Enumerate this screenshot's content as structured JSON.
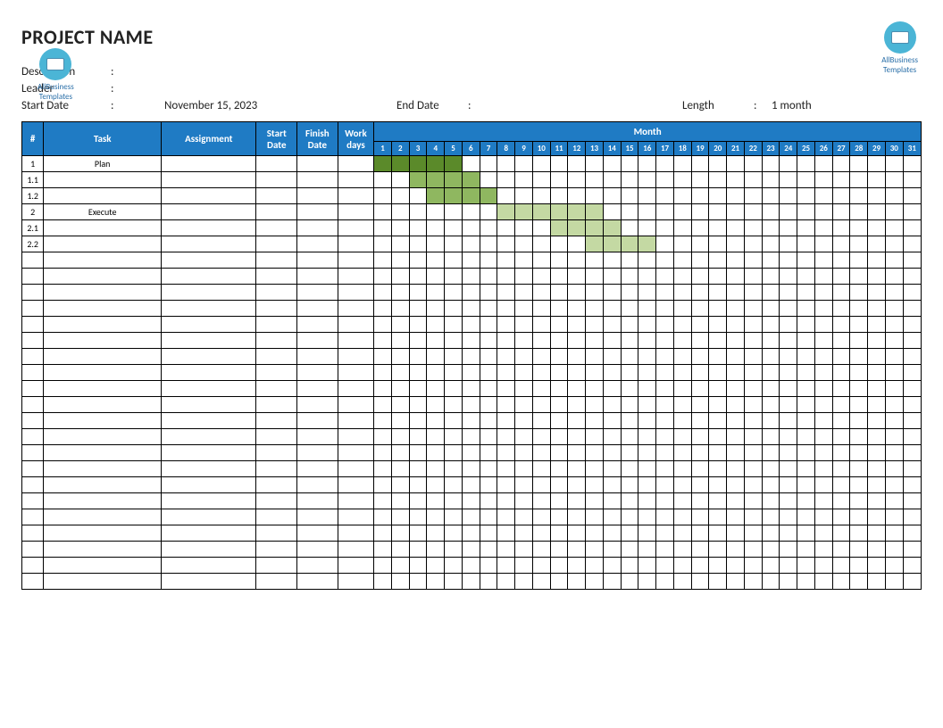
{
  "title": "PROJECT NAME",
  "logo": {
    "line1": "AllBusiness",
    "line2": "Templates"
  },
  "meta": {
    "description_label": "Description",
    "description_value": "",
    "leader_label": "Leader",
    "leader_value": "",
    "start_label": "Start Date",
    "start_value": "November 15, 2023",
    "end_label": "End Date",
    "end_value": "",
    "length_label": "Length",
    "length_value": "1 month",
    "colon": ":"
  },
  "headers": {
    "num": "#",
    "task": "Task",
    "assignment": "Assignment",
    "start_date": "Start Date",
    "finish_date": "Finish Date",
    "work_days": "Work days",
    "month": "Month"
  },
  "days": [
    "1",
    "2",
    "3",
    "4",
    "5",
    "6",
    "7",
    "8",
    "9",
    "10",
    "11",
    "12",
    "13",
    "14",
    "15",
    "16",
    "17",
    "18",
    "19",
    "20",
    "21",
    "22",
    "23",
    "24",
    "25",
    "26",
    "27",
    "28",
    "29",
    "30",
    "31"
  ],
  "rows": [
    {
      "num": "1",
      "task": "Plan",
      "bars": [
        {
          "from": 1,
          "to": 5,
          "cls": "bar-dark"
        }
      ]
    },
    {
      "num": "1.1",
      "task": "",
      "bars": [
        {
          "from": 3,
          "to": 6,
          "cls": "bar-mid"
        }
      ]
    },
    {
      "num": "1.2",
      "task": "",
      "bars": [
        {
          "from": 4,
          "to": 7,
          "cls": "bar-mid"
        }
      ]
    },
    {
      "num": "2",
      "task": "Execute",
      "bars": [
        {
          "from": 8,
          "to": 13,
          "cls": "bar-light"
        }
      ]
    },
    {
      "num": "2.1",
      "task": "",
      "bars": [
        {
          "from": 11,
          "to": 14,
          "cls": "bar-light"
        }
      ]
    },
    {
      "num": "2.2",
      "task": "",
      "bars": [
        {
          "from": 13,
          "to": 16,
          "cls": "bar-light"
        }
      ]
    },
    {
      "num": "",
      "task": "",
      "bars": []
    },
    {
      "num": "",
      "task": "",
      "bars": []
    },
    {
      "num": "",
      "task": "",
      "bars": []
    },
    {
      "num": "",
      "task": "",
      "bars": []
    },
    {
      "num": "",
      "task": "",
      "bars": []
    },
    {
      "num": "",
      "task": "",
      "bars": []
    },
    {
      "num": "",
      "task": "",
      "bars": []
    },
    {
      "num": "",
      "task": "",
      "bars": []
    },
    {
      "num": "",
      "task": "",
      "bars": []
    },
    {
      "num": "",
      "task": "",
      "bars": []
    },
    {
      "num": "",
      "task": "",
      "bars": []
    },
    {
      "num": "",
      "task": "",
      "bars": []
    },
    {
      "num": "",
      "task": "",
      "bars": []
    },
    {
      "num": "",
      "task": "",
      "bars": []
    },
    {
      "num": "",
      "task": "",
      "bars": []
    },
    {
      "num": "",
      "task": "",
      "bars": []
    },
    {
      "num": "",
      "task": "",
      "bars": []
    },
    {
      "num": "",
      "task": "",
      "bars": []
    },
    {
      "num": "",
      "task": "",
      "bars": []
    },
    {
      "num": "",
      "task": "",
      "bars": []
    },
    {
      "num": "",
      "task": "",
      "bars": []
    }
  ],
  "colors": {
    "header_bg": "#1f7bc4",
    "header_fg": "#ffffff",
    "border": "#000000",
    "bar_dark": "#5b8a2a",
    "bar_mid": "#8fb760",
    "bar_light": "#c4d9a3",
    "background": "#ffffff"
  }
}
